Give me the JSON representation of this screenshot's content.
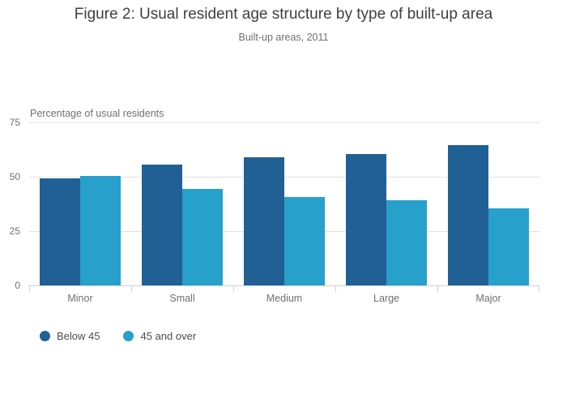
{
  "header": {
    "title": "Figure 2: Usual resident age structure by type of built-up area",
    "subtitle": "Built-up areas, 2011"
  },
  "chart_data": {
    "type": "bar",
    "categories": [
      "Minor",
      "Small",
      "Medium",
      "Large",
      "Major"
    ],
    "series": [
      {
        "name": "Below 45",
        "color": "#206095",
        "values": [
          49.4,
          55.5,
          59,
          60.5,
          64.5
        ]
      },
      {
        "name": "45 and over",
        "color": "#27A0CC",
        "values": [
          50.5,
          44.5,
          40.5,
          39,
          35.5
        ]
      }
    ],
    "ylabel": "Percentage of usual residents",
    "xlabel": "",
    "yticks": [
      0,
      25,
      50,
      75
    ],
    "ylim": [
      0,
      75
    ],
    "grid": true,
    "legend_position": "bottom-left",
    "colors": {
      "gridline": "#e1e1e1",
      "axis_line": "#c9d2e3",
      "text_muted": "#707071",
      "title_text": "#3f3f42"
    }
  }
}
